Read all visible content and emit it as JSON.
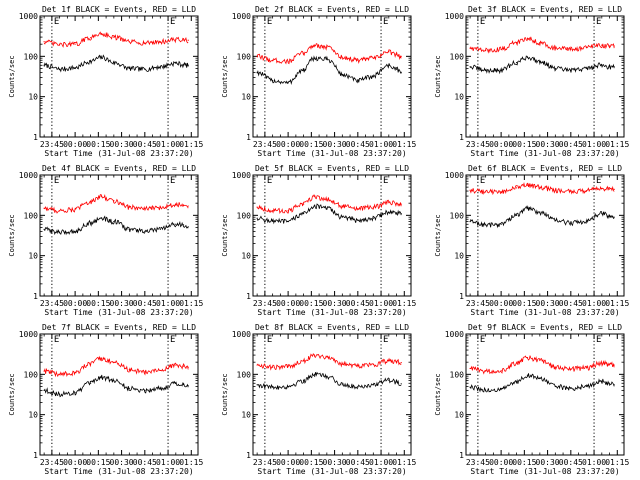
{
  "colors": {
    "events": "#000000",
    "lld": "#ff0000",
    "axes": "#000000",
    "background": "#ffffff"
  },
  "chart_data": [
    {
      "type": "line",
      "title": "Det 1f BLACK = Events, RED = LLD",
      "xlabel": "Start Time (31-Jul-08 23:37:20)",
      "ylabel": "Counts/sec",
      "yscale": "log",
      "ylim": [
        1,
        1000
      ],
      "y_ticks": [
        "1",
        "10",
        "100",
        "1000"
      ],
      "x_ticks": [
        "23:45",
        "00:00",
        "00:15",
        "00:30",
        "00:45",
        "01:00",
        "01:15"
      ],
      "markers": [
        "E",
        "E"
      ],
      "series": [
        {
          "name": "Events",
          "color": "#000000",
          "x": [
            "23:40",
            "23:50",
            "00:00",
            "00:10",
            "00:17",
            "00:25",
            "00:35",
            "00:45",
            "00:55",
            "01:05",
            "01:10",
            "01:13"
          ],
          "values": [
            60,
            48,
            52,
            75,
            95,
            70,
            50,
            48,
            55,
            68,
            62,
            60
          ]
        },
        {
          "name": "LLD",
          "color": "#ff0000",
          "x": [
            "23:40",
            "23:50",
            "00:00",
            "00:10",
            "00:17",
            "00:25",
            "00:35",
            "00:45",
            "00:55",
            "01:05",
            "01:10",
            "01:13"
          ],
          "values": [
            230,
            195,
            200,
            290,
            370,
            300,
            230,
            215,
            230,
            260,
            255,
            250
          ]
        }
      ]
    },
    {
      "type": "line",
      "title": "Det 2f BLACK = Events, RED = LLD",
      "xlabel": "Start Time (31-Jul-08 23:37:20)",
      "ylabel": "Counts/sec",
      "yscale": "log",
      "ylim": [
        1,
        1000
      ],
      "y_ticks": [
        "1",
        "10",
        "100",
        "1000"
      ],
      "x_ticks": [
        "23:45",
        "00:00",
        "00:15",
        "00:30",
        "00:45",
        "01:00",
        "01:15"
      ],
      "markers": [
        "E",
        "E"
      ],
      "series": [
        {
          "name": "Events",
          "color": "#000000",
          "x": [
            "23:40",
            "23:50",
            "00:00",
            "00:10",
            "00:17",
            "00:25",
            "00:35",
            "00:45",
            "00:55",
            "01:05",
            "01:10",
            "01:13"
          ],
          "values": [
            40,
            25,
            22,
            45,
            90,
            85,
            35,
            25,
            32,
            60,
            48,
            40
          ]
        },
        {
          "name": "LLD",
          "color": "#ff0000",
          "x": [
            "23:40",
            "23:50",
            "00:00",
            "00:10",
            "00:17",
            "00:25",
            "00:35",
            "00:45",
            "00:55",
            "01:05",
            "01:10",
            "01:13"
          ],
          "values": [
            100,
            80,
            75,
            120,
            190,
            170,
            95,
            80,
            90,
            130,
            110,
            100
          ]
        }
      ]
    },
    {
      "type": "line",
      "title": "Det 3f BLACK = Events, RED = LLD",
      "xlabel": "Start Time (31-Jul-08 23:37:20)",
      "ylabel": "Counts/sec",
      "yscale": "log",
      "ylim": [
        1,
        1000
      ],
      "y_ticks": [
        "1",
        "10",
        "100",
        "1000"
      ],
      "x_ticks": [
        "23:45",
        "00:00",
        "00:15",
        "00:30",
        "00:45",
        "01:00",
        "01:15"
      ],
      "markers": [
        "E",
        "E"
      ],
      "series": [
        {
          "name": "Events",
          "color": "#000000",
          "x": [
            "23:40",
            "23:50",
            "00:00",
            "00:10",
            "00:17",
            "00:25",
            "00:35",
            "00:45",
            "00:55",
            "01:05",
            "01:10",
            "01:13"
          ],
          "values": [
            55,
            45,
            45,
            70,
            95,
            75,
            50,
            45,
            50,
            62,
            55,
            55
          ]
        },
        {
          "name": "LLD",
          "color": "#ff0000",
          "x": [
            "23:40",
            "23:50",
            "00:00",
            "00:10",
            "00:17",
            "00:25",
            "00:35",
            "00:45",
            "00:55",
            "01:05",
            "01:10",
            "01:13"
          ],
          "values": [
            160,
            140,
            150,
            220,
            280,
            220,
            160,
            150,
            165,
            190,
            180,
            180
          ]
        }
      ]
    },
    {
      "type": "line",
      "title": "Det 4f BLACK = Events, RED = LLD",
      "xlabel": "Start Time (31-Jul-08 23:37:20)",
      "ylabel": "Counts/sec",
      "yscale": "log",
      "ylim": [
        1,
        1000
      ],
      "y_ticks": [
        "1",
        "10",
        "100",
        "1000"
      ],
      "x_ticks": [
        "23:45",
        "00:00",
        "00:15",
        "00:30",
        "00:45",
        "01:00",
        "01:15"
      ],
      "markers": [
        "E",
        "E"
      ],
      "series": [
        {
          "name": "Events",
          "color": "#000000",
          "x": [
            "23:40",
            "23:50",
            "00:00",
            "00:10",
            "00:17",
            "00:25",
            "00:35",
            "00:45",
            "00:55",
            "01:05",
            "01:10",
            "01:13"
          ],
          "values": [
            45,
            38,
            40,
            65,
            85,
            70,
            45,
            40,
            45,
            60,
            58,
            52
          ]
        },
        {
          "name": "LLD",
          "color": "#ff0000",
          "x": [
            "23:40",
            "23:50",
            "00:00",
            "00:10",
            "00:17",
            "00:25",
            "00:35",
            "00:45",
            "00:55",
            "01:05",
            "01:10",
            "01:13"
          ],
          "values": [
            150,
            130,
            140,
            220,
            290,
            230,
            160,
            145,
            155,
            190,
            180,
            170
          ]
        }
      ]
    },
    {
      "type": "line",
      "title": "Det 5f BLACK = Events, RED = LLD",
      "xlabel": "Start Time (31-Jul-08 23:37:20)",
      "ylabel": "Counts/sec",
      "yscale": "log",
      "ylim": [
        1,
        1000
      ],
      "y_ticks": [
        "1",
        "10",
        "100",
        "1000"
      ],
      "x_ticks": [
        "23:45",
        "00:00",
        "00:15",
        "00:30",
        "00:45",
        "01:00",
        "01:15"
      ],
      "markers": [
        "E",
        "E"
      ],
      "series": [
        {
          "name": "Events",
          "color": "#000000",
          "x": [
            "23:40",
            "23:50",
            "00:00",
            "00:10",
            "00:17",
            "00:25",
            "00:35",
            "00:45",
            "00:55",
            "01:05",
            "01:10",
            "01:13"
          ],
          "values": [
            85,
            72,
            70,
            110,
            170,
            150,
            90,
            75,
            85,
            120,
            115,
            110
          ]
        },
        {
          "name": "LLD",
          "color": "#ff0000",
          "x": [
            "23:40",
            "23:50",
            "00:00",
            "00:10",
            "00:17",
            "00:25",
            "00:35",
            "00:45",
            "00:55",
            "01:05",
            "01:10",
            "01:13"
          ],
          "values": [
            160,
            130,
            130,
            190,
            290,
            250,
            170,
            145,
            160,
            210,
            200,
            190
          ]
        }
      ]
    },
    {
      "type": "line",
      "title": "Det 6f BLACK = Events, RED = LLD",
      "xlabel": "Start Time (31-Jul-08 23:37:20)",
      "ylabel": "Counts/sec",
      "yscale": "log",
      "ylim": [
        1,
        1000
      ],
      "y_ticks": [
        "1",
        "10",
        "100",
        "1000"
      ],
      "x_ticks": [
        "23:45",
        "00:00",
        "00:15",
        "00:30",
        "00:45",
        "01:00",
        "01:15"
      ],
      "markers": [
        "E",
        "E"
      ],
      "series": [
        {
          "name": "Events",
          "color": "#000000",
          "x": [
            "23:40",
            "23:50",
            "00:00",
            "00:10",
            "00:17",
            "00:25",
            "00:35",
            "00:45",
            "00:55",
            "01:05",
            "01:10",
            "01:13"
          ],
          "values": [
            70,
            58,
            60,
            100,
            150,
            120,
            75,
            65,
            72,
            110,
            100,
            90
          ]
        },
        {
          "name": "LLD",
          "color": "#ff0000",
          "x": [
            "23:40",
            "23:50",
            "00:00",
            "00:10",
            "00:17",
            "00:25",
            "00:35",
            "00:45",
            "00:55",
            "01:05",
            "01:10",
            "01:13"
          ],
          "values": [
            420,
            380,
            390,
            480,
            560,
            500,
            420,
            390,
            410,
            460,
            450,
            440
          ]
        }
      ]
    },
    {
      "type": "line",
      "title": "Det 7f BLACK = Events, RED = LLD",
      "xlabel": "Start Time (31-Jul-08 23:37:20)",
      "ylabel": "Counts/sec",
      "yscale": "log",
      "ylim": [
        1,
        1000
      ],
      "y_ticks": [
        "1",
        "10",
        "100",
        "1000"
      ],
      "x_ticks": [
        "23:45",
        "00:00",
        "00:15",
        "00:30",
        "00:45",
        "01:00",
        "01:15"
      ],
      "markers": [
        "E",
        "E"
      ],
      "series": [
        {
          "name": "Events",
          "color": "#000000",
          "x": [
            "23:40",
            "23:50",
            "00:00",
            "00:10",
            "00:17",
            "00:25",
            "00:35",
            "00:45",
            "00:55",
            "01:05",
            "01:10",
            "01:13"
          ],
          "values": [
            40,
            32,
            35,
            60,
            85,
            70,
            45,
            40,
            45,
            60,
            56,
            52
          ]
        },
        {
          "name": "LLD",
          "color": "#ff0000",
          "x": [
            "23:40",
            "23:50",
            "00:00",
            "00:10",
            "00:17",
            "00:25",
            "00:35",
            "00:45",
            "00:55",
            "01:05",
            "01:10",
            "01:13"
          ],
          "values": [
            120,
            100,
            110,
            180,
            250,
            200,
            130,
            115,
            125,
            170,
            160,
            150
          ]
        }
      ]
    },
    {
      "type": "line",
      "title": "Det 8f BLACK = Events, RED = LLD",
      "xlabel": "Start Time (31-Jul-08 23:37:20)",
      "ylabel": "Counts/sec",
      "yscale": "log",
      "ylim": [
        1,
        1000
      ],
      "y_ticks": [
        "1",
        "10",
        "100",
        "1000"
      ],
      "x_ticks": [
        "23:45",
        "00:00",
        "00:15",
        "00:30",
        "00:45",
        "01:00",
        "01:15"
      ],
      "markers": [
        "E",
        "E"
      ],
      "series": [
        {
          "name": "Events",
          "color": "#000000",
          "x": [
            "23:40",
            "23:50",
            "00:00",
            "00:10",
            "00:17",
            "00:25",
            "00:35",
            "00:45",
            "00:55",
            "01:05",
            "01:10",
            "01:13"
          ],
          "values": [
            55,
            48,
            50,
            70,
            100,
            90,
            55,
            50,
            55,
            72,
            65,
            58
          ]
        },
        {
          "name": "LLD",
          "color": "#ff0000",
          "x": [
            "23:40",
            "23:50",
            "00:00",
            "00:10",
            "00:17",
            "00:25",
            "00:35",
            "00:45",
            "00:55",
            "01:05",
            "01:10",
            "01:13"
          ],
          "values": [
            170,
            150,
            155,
            220,
            300,
            270,
            180,
            165,
            175,
            220,
            210,
            195
          ]
        }
      ]
    },
    {
      "type": "line",
      "title": "Det 9f BLACK = Events, RED = LLD",
      "xlabel": "Start Time (31-Jul-08 23:37:20)",
      "ylabel": "Counts/sec",
      "yscale": "log",
      "ylim": [
        1,
        1000
      ],
      "y_ticks": [
        "1",
        "10",
        "100",
        "1000"
      ],
      "x_ticks": [
        "23:45",
        "00:00",
        "00:15",
        "00:30",
        "00:45",
        "01:00",
        "01:15"
      ],
      "markers": [
        "E",
        "E"
      ],
      "series": [
        {
          "name": "Events",
          "color": "#000000",
          "x": [
            "23:40",
            "23:50",
            "00:00",
            "00:10",
            "00:17",
            "00:25",
            "00:35",
            "00:45",
            "00:55",
            "01:05",
            "01:10",
            "01:13"
          ],
          "values": [
            48,
            40,
            42,
            65,
            95,
            80,
            50,
            45,
            50,
            68,
            60,
            55
          ]
        },
        {
          "name": "LLD",
          "color": "#ff0000",
          "x": [
            "23:40",
            "23:50",
            "00:00",
            "00:10",
            "00:17",
            "00:25",
            "00:35",
            "00:45",
            "00:55",
            "01:05",
            "01:10",
            "01:13"
          ],
          "values": [
            140,
            120,
            125,
            190,
            260,
            220,
            150,
            135,
            145,
            190,
            180,
            170
          ]
        }
      ]
    }
  ]
}
